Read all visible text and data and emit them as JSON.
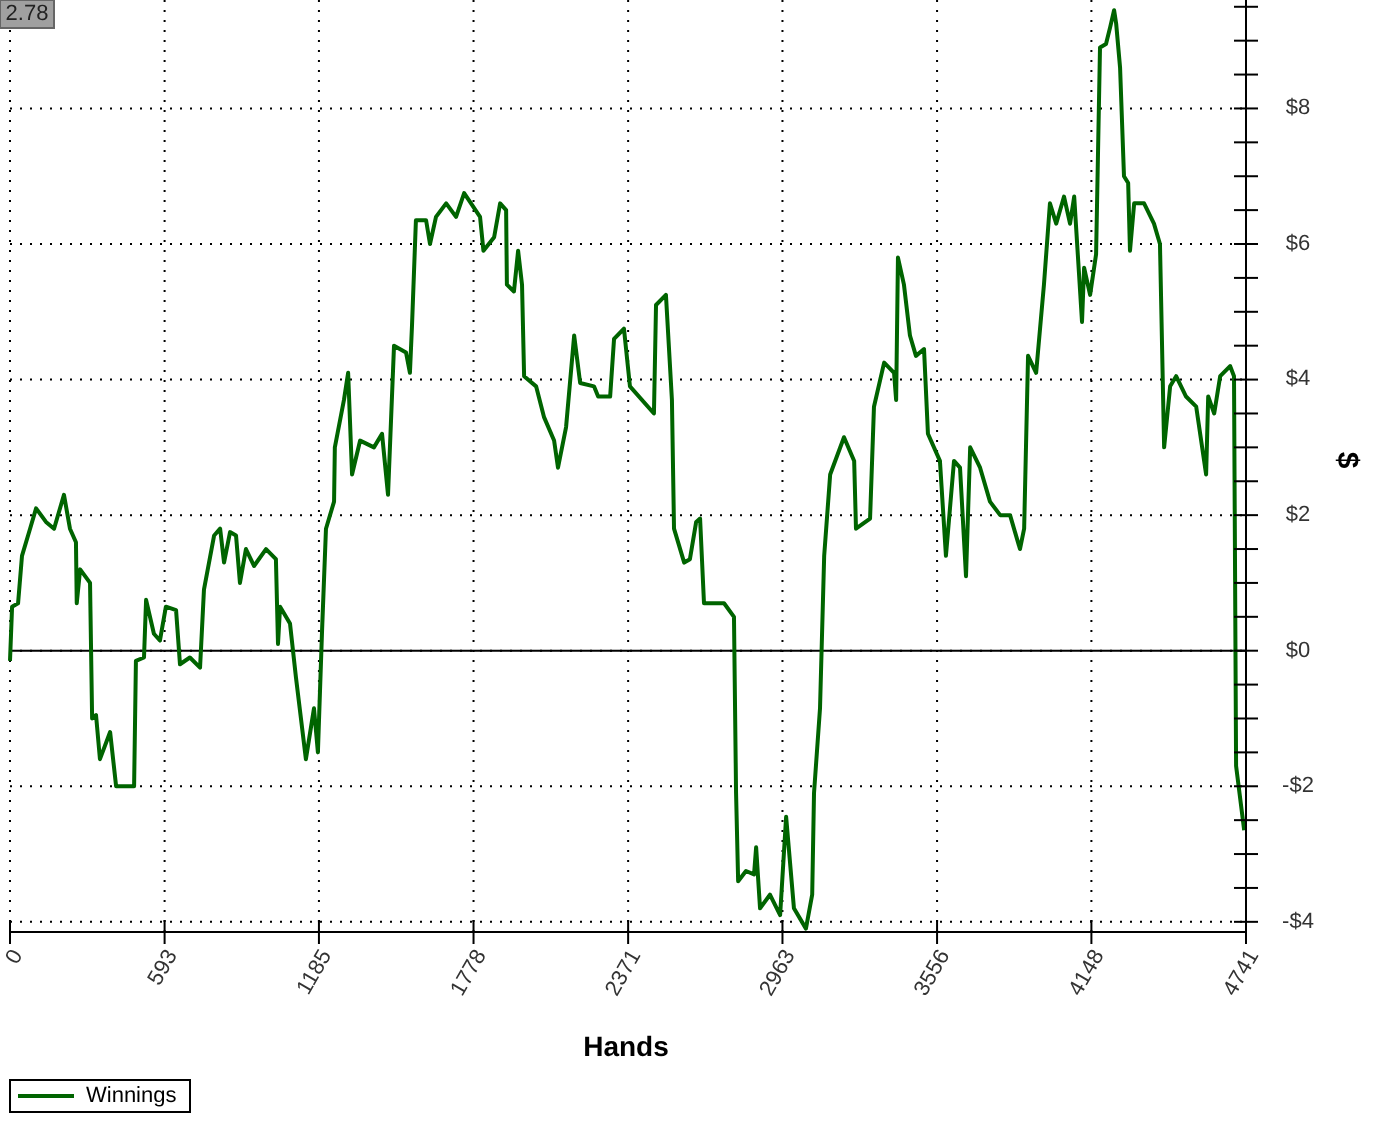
{
  "chart_data": {
    "type": "line",
    "xlabel": "Hands",
    "ylabel": "$",
    "annotations": [
      "2.78"
    ],
    "xlim": [
      0,
      4741
    ],
    "xticks": [
      0,
      593,
      1185,
      1778,
      2371,
      2963,
      3556,
      4148,
      4741
    ],
    "ylim": [
      -4.15,
      9.6
    ],
    "yticks": [
      {
        "value": -4,
        "label": "-$4"
      },
      {
        "value": -3.5,
        "label": null
      },
      {
        "value": -3,
        "label": null
      },
      {
        "value": -2.5,
        "label": null
      },
      {
        "value": -2,
        "label": "-$2"
      },
      {
        "value": -1.5,
        "label": null
      },
      {
        "value": -1,
        "label": null
      },
      {
        "value": -0.5,
        "label": null
      },
      {
        "value": 0,
        "label": "$0"
      },
      {
        "value": 0.5,
        "label": null
      },
      {
        "value": 1,
        "label": null
      },
      {
        "value": 1.5,
        "label": null
      },
      {
        "value": 2,
        "label": "$2"
      },
      {
        "value": 2.5,
        "label": null
      },
      {
        "value": 3,
        "label": null
      },
      {
        "value": 3.5,
        "label": null
      },
      {
        "value": 4,
        "label": "$4"
      },
      {
        "value": 4.5,
        "label": null
      },
      {
        "value": 5,
        "label": null
      },
      {
        "value": 5.5,
        "label": null
      },
      {
        "value": 6,
        "label": "$6"
      },
      {
        "value": 6.5,
        "label": null
      },
      {
        "value": 7,
        "label": null
      },
      {
        "value": 7.5,
        "label": null
      },
      {
        "value": 8,
        "label": "$8"
      },
      {
        "value": 8.5,
        "label": null
      },
      {
        "value": 9,
        "label": null
      },
      {
        "value": 9.5,
        "label": null
      }
    ],
    "grid": true,
    "legend": "bottom left",
    "line_style": "solid",
    "ref_lines": [
      {
        "axis": "y",
        "value": 0,
        "color": "#000000"
      }
    ],
    "x": [
      0,
      8,
      31,
      46,
      77,
      100,
      138,
      169,
      207,
      230,
      253,
      256,
      269,
      307,
      315,
      330,
      345,
      384,
      407,
      476,
      483,
      514,
      522,
      552,
      575,
      598,
      637,
      652,
      690,
      729,
      744,
      783,
      806,
      821,
      844,
      867,
      882,
      905,
      936,
      982,
      1020,
      1028,
      1036,
      1074,
      1097,
      1135,
      1166,
      1181,
      1197,
      1212,
      1243,
      1246,
      1281,
      1297,
      1312,
      1343,
      1396,
      1427,
      1450,
      1473,
      1519,
      1534,
      1542,
      1557,
      1596,
      1611,
      1634,
      1673,
      1711,
      1742,
      1803,
      1816,
      1857,
      1880,
      1903,
      1906,
      1933,
      1949,
      1964,
      1972,
      2018,
      2048,
      2087,
      2102,
      2133,
      2164,
      2187,
      2240,
      2256,
      2302,
      2317,
      2355,
      2378,
      2470,
      2478,
      2516,
      2539,
      2547,
      2586,
      2608,
      2632,
      2647,
      2662,
      2739,
      2777,
      2785,
      2793,
      2823,
      2854,
      2862,
      2877,
      2915,
      2954,
      2977,
      3007,
      3053,
      3077,
      3084,
      3107,
      3123,
      3146,
      3199,
      3238,
      3245,
      3299,
      3314,
      3353,
      3391,
      3399,
      3406,
      3429,
      3452,
      3475,
      3506,
      3521,
      3567,
      3590,
      3621,
      3644,
      3667,
      3683,
      3721,
      3759,
      3798,
      3836,
      3874,
      3890,
      3905,
      3936,
      3966,
      3989,
      4013,
      4043,
      4066,
      4082,
      4112,
      4120,
      4143,
      4166,
      4181,
      4204,
      4220,
      4235,
      4243,
      4258,
      4273,
      4289,
      4296,
      4312,
      4350,
      4388,
      4411,
      4427,
      4450,
      4473,
      4511,
      4550,
      4588,
      4596,
      4619,
      4642,
      4680,
      4695,
      4703,
      4734
    ],
    "series": [
      {
        "name": "Winnings",
        "color": "#006400",
        "values": [
          -0.15,
          0.65,
          0.7,
          1.4,
          1.8,
          2.1,
          1.9,
          1.8,
          2.3,
          1.8,
          1.6,
          0.7,
          1.2,
          1.0,
          -1.0,
          -0.95,
          -1.6,
          -1.2,
          -2.0,
          -2.0,
          -0.15,
          -0.1,
          0.75,
          0.25,
          0.15,
          0.65,
          0.6,
          -0.2,
          -0.1,
          -0.25,
          0.9,
          1.7,
          1.8,
          1.3,
          1.75,
          1.7,
          1.0,
          1.5,
          1.25,
          1.5,
          1.35,
          0.1,
          0.65,
          0.4,
          -0.4,
          -1.6,
          -0.85,
          -1.5,
          0.3,
          1.8,
          2.2,
          3.0,
          3.7,
          4.1,
          2.6,
          3.1,
          3.0,
          3.2,
          2.3,
          4.5,
          4.4,
          4.1,
          4.8,
          6.35,
          6.35,
          6.0,
          6.4,
          6.6,
          6.4,
          6.75,
          6.4,
          5.9,
          6.1,
          6.6,
          6.5,
          5.4,
          5.3,
          5.9,
          5.4,
          4.05,
          3.9,
          3.45,
          3.1,
          2.7,
          3.3,
          4.65,
          3.95,
          3.9,
          3.75,
          3.75,
          4.6,
          4.75,
          3.9,
          3.5,
          5.1,
          5.25,
          3.7,
          1.8,
          1.3,
          1.35,
          1.9,
          1.95,
          0.7,
          0.7,
          0.5,
          -2.1,
          -3.4,
          -3.25,
          -3.3,
          -2.9,
          -3.8,
          -3.6,
          -3.9,
          -2.45,
          -3.8,
          -4.1,
          -3.6,
          -2.1,
          -0.85,
          1.4,
          2.6,
          3.15,
          2.8,
          1.8,
          1.95,
          3.6,
          4.25,
          4.1,
          3.7,
          5.8,
          5.4,
          4.65,
          4.35,
          4.45,
          3.2,
          2.8,
          1.4,
          2.8,
          2.7,
          1.1,
          3.0,
          2.7,
          2.2,
          2.0,
          2.0,
          1.5,
          1.8,
          4.35,
          4.1,
          5.4,
          6.6,
          6.3,
          6.7,
          6.3,
          6.7,
          4.85,
          5.65,
          5.25,
          5.85,
          8.9,
          8.95,
          9.2,
          9.45,
          9.25,
          8.6,
          7.0,
          6.9,
          5.9,
          6.6,
          6.6,
          6.3,
          6.0,
          3.0,
          3.9,
          4.05,
          3.75,
          3.6,
          2.6,
          3.75,
          3.5,
          4.05,
          4.2,
          4.05,
          -1.7,
          -2.65
        ]
      }
    ]
  }
}
